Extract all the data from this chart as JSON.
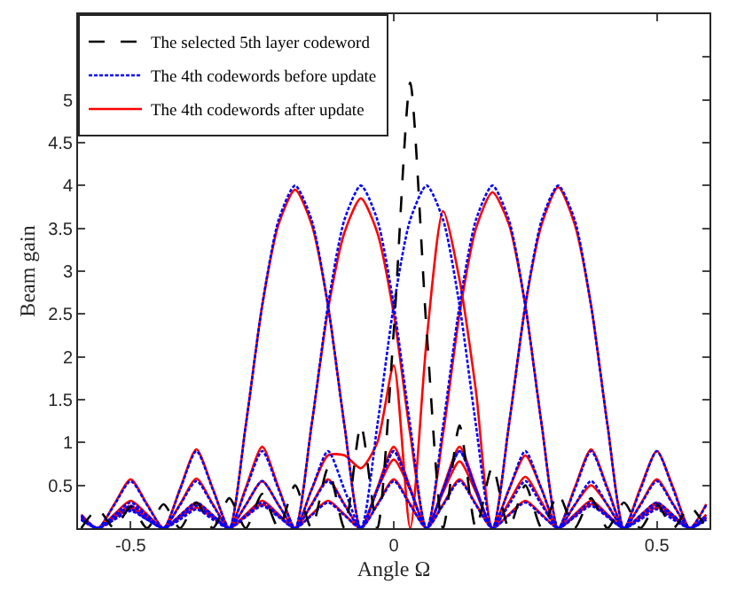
{
  "chart_data": {
    "type": "line",
    "xlabel": "Angle Ω",
    "ylabel": "Beam gain",
    "x": [
      -0.59375,
      -0.5625,
      -0.53125,
      -0.5,
      -0.46875,
      -0.4375,
      -0.40625,
      -0.375,
      -0.34375,
      -0.3125,
      -0.28125,
      -0.25,
      -0.21875,
      -0.1875,
      -0.15625,
      -0.125,
      -0.09375,
      -0.0625,
      -0.03125,
      0,
      0.03125,
      0.0625,
      0.09375,
      0.125,
      0.15625,
      0.1875,
      0.21875,
      0.25,
      0.28125,
      0.3125,
      0.34375,
      0.375,
      0.40625,
      0.4375,
      0.46875,
      0.5,
      0.53125,
      0.5625,
      0.59375
    ],
    "xlim": [
      -0.6,
      0.6
    ],
    "xticks": [
      -0.5,
      0,
      0.5
    ],
    "ylim": [
      0,
      6
    ],
    "yticks": [
      0.5,
      1,
      1.5,
      2,
      2.5,
      3,
      3.5,
      4,
      4.5,
      5,
      {
        "value": 5.5,
        "label": null
      }
    ],
    "legend": "top left",
    "marker": "none",
    "series": [
      {
        "name": "The selected 5th layer codeword",
        "color": "#000000",
        "line_style": "dashed",
        "values": [
          0,
          0.22,
          0,
          0.25,
          0,
          0.28,
          0,
          0.3,
          0,
          0.35,
          0,
          0.4,
          0,
          0.5,
          0,
          0.7,
          0,
          1.2,
          0,
          2.3,
          5.2,
          2.3,
          0,
          1.2,
          0,
          0.72,
          0,
          0.5,
          0,
          0.4,
          0,
          0.35,
          0,
          0.3,
          0,
          0.28,
          0,
          0.25,
          0
        ]
      },
      {
        "name": "The 4th codewords before update",
        "color": "#0000ff",
        "line_style": "dotted",
        "values": [
          0.15,
          0,
          0.27,
          0.55,
          0.27,
          0,
          0.45,
          0.9,
          0.45,
          0,
          1.2,
          2.6,
          3.6,
          4,
          3.6,
          2.6,
          1.2,
          0,
          0.45,
          0.9,
          0.45,
          0,
          0.27,
          0.55,
          0.27,
          0,
          0.15,
          0.3,
          0.15,
          0,
          0.13,
          0.26,
          0.13,
          0,
          0.1,
          0.22,
          0.1,
          0,
          0.1
        ]
      },
      {
        "color": "#0000ff",
        "line_style": "dotted",
        "values": [
          0.13,
          0,
          0.15,
          0.3,
          0.15,
          0,
          0.27,
          0.55,
          0.27,
          0,
          0.45,
          0.9,
          0.45,
          0,
          1.2,
          2.6,
          3.6,
          4,
          3.6,
          2.6,
          1.2,
          0,
          0.45,
          0.9,
          0.45,
          0,
          0.27,
          0.55,
          0.27,
          0,
          0.15,
          0.3,
          0.15,
          0,
          0.13,
          0.26,
          0.13,
          0,
          0.1
        ]
      },
      {
        "color": "#0000ff",
        "line_style": "dotted",
        "values": [
          0.1,
          0,
          0.13,
          0.26,
          0.13,
          0,
          0.15,
          0.3,
          0.15,
          0,
          0.27,
          0.55,
          0.27,
          0,
          0.45,
          0.9,
          0.45,
          0,
          1.2,
          2.6,
          3.6,
          4,
          3.6,
          2.6,
          1.2,
          0,
          0.45,
          0.9,
          0.45,
          0,
          0.27,
          0.55,
          0.27,
          0,
          0.15,
          0.3,
          0.15,
          0,
          0.13
        ]
      },
      {
        "color": "#0000ff",
        "line_style": "dotted",
        "values": [
          0.1,
          0,
          0.1,
          0.22,
          0.1,
          0,
          0.13,
          0.26,
          0.13,
          0,
          0.15,
          0.3,
          0.15,
          0,
          0.27,
          0.55,
          0.27,
          0,
          0.45,
          0.9,
          0.45,
          0,
          1.2,
          2.6,
          3.6,
          4,
          3.6,
          2.6,
          1.2,
          0,
          0.45,
          0.9,
          0.45,
          0,
          0.27,
          0.55,
          0.27,
          0,
          0.15
        ]
      },
      {
        "color": "#0000ff",
        "line_style": "dotted",
        "values": [
          0.1,
          0,
          0.1,
          0.2,
          0.1,
          0,
          0.1,
          0.22,
          0.1,
          0,
          0.13,
          0.26,
          0.13,
          0,
          0.15,
          0.3,
          0.15,
          0,
          0.27,
          0.55,
          0.27,
          0,
          0.45,
          0.9,
          0.45,
          0,
          1.2,
          2.6,
          3.6,
          4,
          3.6,
          2.6,
          1.2,
          0,
          0.45,
          0.9,
          0.45,
          0,
          0.27
        ]
      },
      {
        "name": "The 4th codewords after update",
        "color": "#ff0000",
        "line_style": "solid",
        "values": [
          0.16,
          0,
          0.28,
          0.57,
          0.28,
          0,
          0.46,
          0.92,
          0.46,
          0,
          1.2,
          2.6,
          3.55,
          3.95,
          3.55,
          2.6,
          1.2,
          0,
          0.47,
          0.95,
          0.47,
          0,
          0.28,
          0.57,
          0.28,
          0,
          0.16,
          0.32,
          0.16,
          0,
          0.14,
          0.28,
          0.14,
          0,
          0.12,
          0.24,
          0.12,
          0,
          0.12
        ]
      },
      {
        "color": "#ff0000",
        "line_style": "solid",
        "values": [
          0.14,
          0,
          0.16,
          0.32,
          0.16,
          0,
          0.28,
          0.58,
          0.28,
          0,
          0.47,
          0.95,
          0.47,
          0,
          1.2,
          2.55,
          3.45,
          3.85,
          3.45,
          2.5,
          1.1,
          0,
          0.42,
          0.78,
          0.42,
          0,
          0.3,
          0.6,
          0.3,
          0,
          0.16,
          0.32,
          0.16,
          0,
          0.14,
          0.28,
          0.14,
          0,
          0.12
        ]
      },
      {
        "color": "#ff0000",
        "line_style": "solid",
        "values": [
          0.1,
          0,
          0.13,
          0.26,
          0.13,
          0,
          0.15,
          0.3,
          0.15,
          0,
          0.27,
          0.55,
          0.27,
          0,
          0.45,
          0.85,
          0.85,
          0.7,
          1.0,
          1.9,
          0,
          2.2,
          3.7,
          2.9,
          1.6,
          0,
          0.45,
          0.85,
          0.45,
          0,
          0.27,
          0.5,
          0.27,
          0,
          0.15,
          0.3,
          0.15,
          0,
          0.13
        ]
      },
      {
        "color": "#ff0000",
        "line_style": "solid",
        "values": [
          0.12,
          0,
          0.12,
          0.24,
          0.12,
          0,
          0.14,
          0.28,
          0.14,
          0,
          0.16,
          0.32,
          0.16,
          0,
          0.28,
          0.57,
          0.28,
          0,
          0.45,
          0.8,
          0.45,
          0,
          1.1,
          2.5,
          3.5,
          3.92,
          3.55,
          2.6,
          1.2,
          0,
          0.47,
          0.92,
          0.47,
          0,
          0.28,
          0.57,
          0.28,
          0,
          0.16
        ]
      },
      {
        "color": "#ff0000",
        "line_style": "solid",
        "values": [
          0.12,
          0,
          0.12,
          0.22,
          0.12,
          0,
          0.12,
          0.24,
          0.12,
          0,
          0.14,
          0.28,
          0.14,
          0,
          0.16,
          0.32,
          0.16,
          0,
          0.28,
          0.57,
          0.28,
          0,
          0.47,
          0.95,
          0.47,
          0,
          1.2,
          2.6,
          3.55,
          3.98,
          3.55,
          2.6,
          1.2,
          0,
          0.47,
          0.9,
          0.47,
          0,
          0.28
        ]
      }
    ]
  }
}
